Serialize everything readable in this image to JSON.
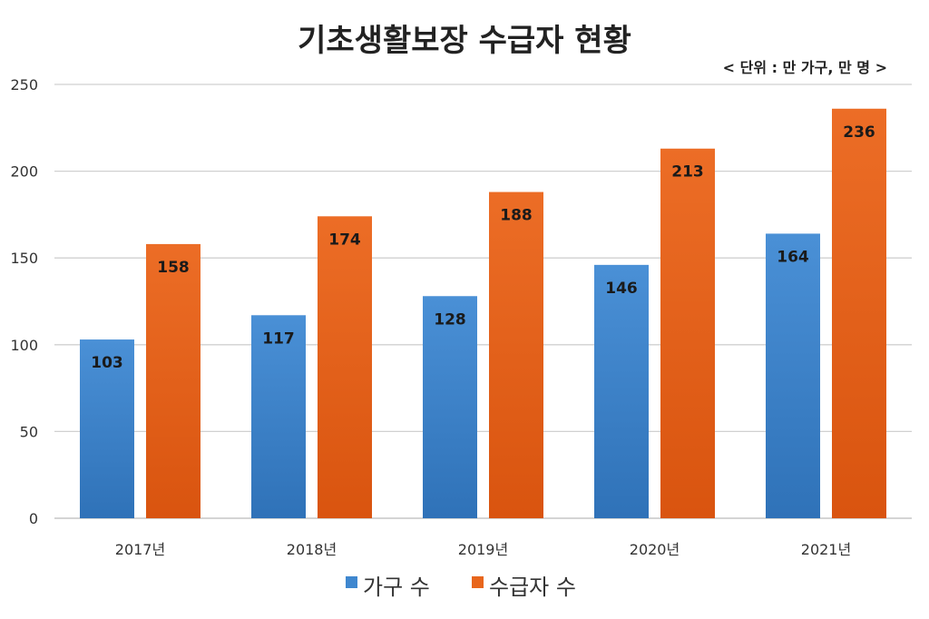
{
  "chart_data": {
    "type": "bar",
    "title": "기초생활보장 수급자 현황",
    "subtitle": "< 단위 : 만 가구, 만 명 >",
    "categories": [
      "2017년",
      "2018년",
      "2019년",
      "2020년",
      "2021년"
    ],
    "series": [
      {
        "name": "가구 수",
        "values": [
          103,
          117,
          128,
          146,
          164
        ],
        "color": "#3f87cf"
      },
      {
        "name": "수급자 수",
        "values": [
          158,
          174,
          188,
          213,
          236
        ],
        "color": "#e8661c"
      }
    ],
    "ylim": [
      0,
      250
    ],
    "yticks": [
      "0",
      "50",
      "100",
      "150",
      "200",
      "250"
    ],
    "grid": true,
    "legend": "bottom",
    "data_labels": true
  }
}
